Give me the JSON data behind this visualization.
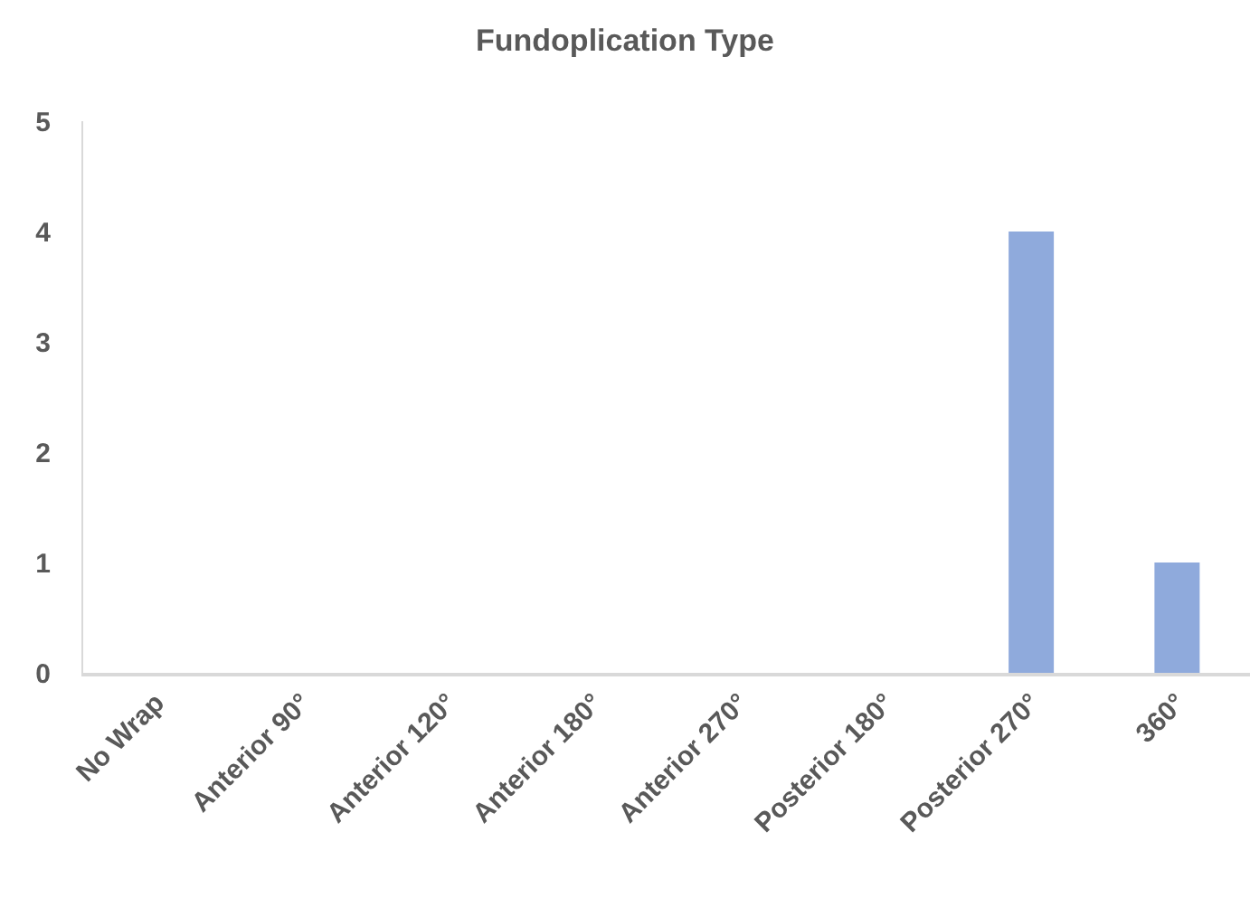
{
  "chart_data": {
    "type": "bar",
    "title": "Fundoplication Type",
    "categories": [
      "No Wrap",
      "Anterior 90°",
      "Anterior 120°",
      "Anterior 180°",
      "Anterior 270°",
      "Posterior 180°",
      "Posterior 270°",
      "360°"
    ],
    "values": [
      0,
      0,
      0,
      0,
      0,
      0,
      4,
      1
    ],
    "color": "#8faadc",
    "ylim": [
      0,
      5
    ],
    "yticks": [
      0,
      1,
      2,
      3,
      4,
      5
    ],
    "grid": false
  }
}
